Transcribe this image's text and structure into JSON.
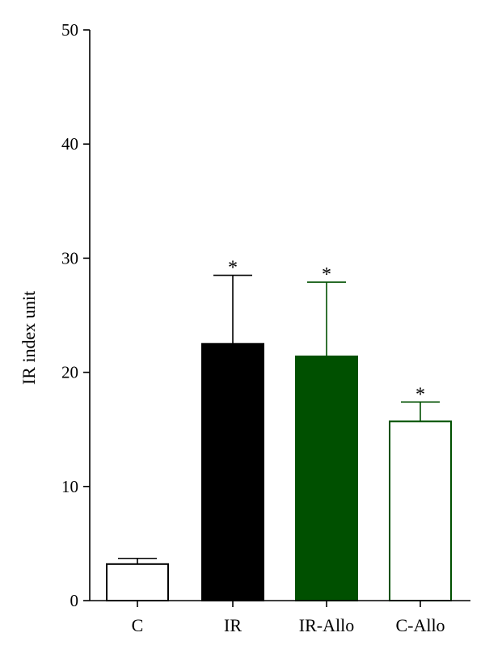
{
  "chart_data": {
    "type": "bar",
    "title": "",
    "xlabel": "",
    "ylabel": "IR index unit",
    "ylim": [
      0,
      50
    ],
    "yticks": [
      0,
      10,
      20,
      30,
      40,
      50
    ],
    "grid": false,
    "categories": [
      "C",
      "IR",
      "IR-Allo",
      "C-Allo"
    ],
    "values": [
      3.2,
      22.5,
      21.4,
      15.7
    ],
    "errors": [
      0.5,
      6.0,
      6.5,
      1.7
    ],
    "significance": [
      "",
      "*",
      "*",
      "*"
    ],
    "colors": {
      "fill": [
        "#ffffff",
        "#000000",
        "#005000",
        "#ffffff"
      ],
      "stroke": [
        "#000000",
        "#000000",
        "#005000",
        "#005000"
      ]
    }
  }
}
